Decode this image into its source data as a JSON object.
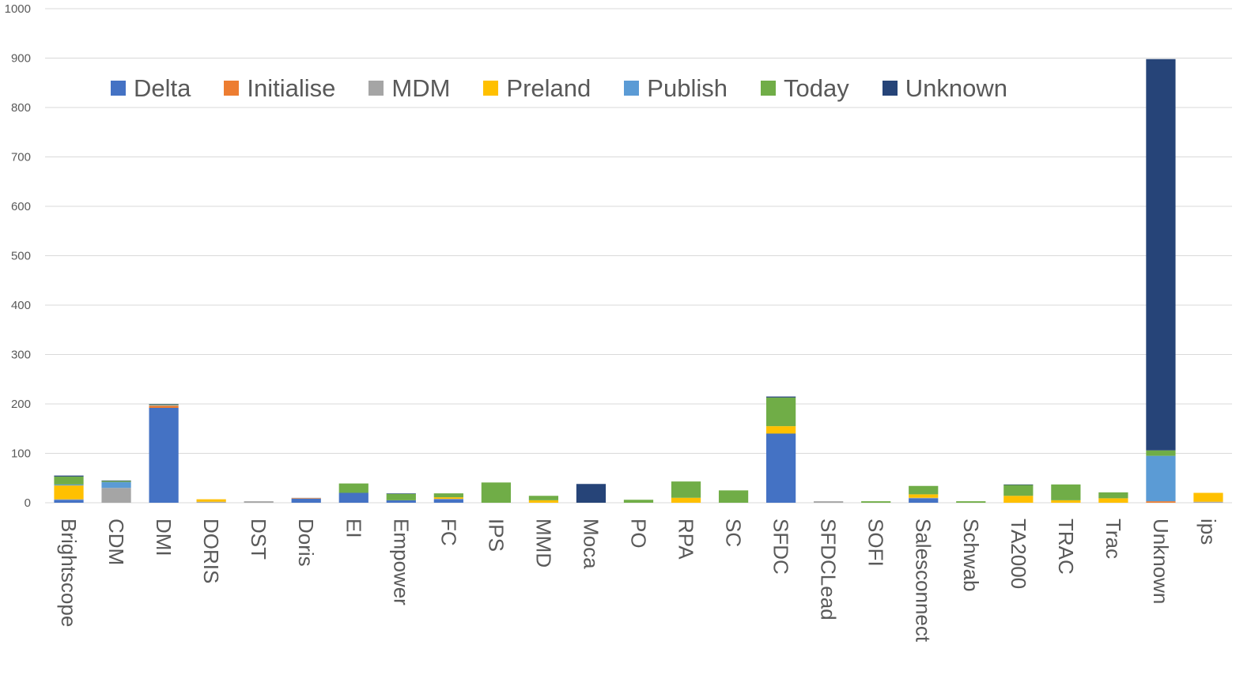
{
  "chart_data": {
    "type": "bar",
    "stacked": true,
    "title": "",
    "xlabel": "",
    "ylabel": "",
    "ylim": [
      0,
      1000
    ],
    "yticks": [
      0,
      100,
      200,
      300,
      400,
      500,
      600,
      700,
      800,
      900,
      1000
    ],
    "grid": true,
    "legend_position": "top-left",
    "categories": [
      "Brightscope",
      "CDM",
      "DMI",
      "DORIS",
      "DST",
      "Doris",
      "EI",
      "Empower",
      "FC",
      "IPS",
      "MMD",
      "Moca",
      "PO",
      "RPA",
      "SC",
      "SFDC",
      "SFDCLead",
      "SOFI",
      "Salesconnect",
      "Schwab",
      "TA2000",
      "TRAC",
      "Trac",
      "Unknown",
      "ips"
    ],
    "series": [
      {
        "name": "Delta",
        "color": "#4472C4",
        "values": [
          6,
          0,
          192,
          0,
          0,
          8,
          20,
          5,
          7,
          0,
          0,
          0,
          0,
          0,
          0,
          140,
          0,
          0,
          9,
          0,
          0,
          0,
          0,
          0,
          0
        ]
      },
      {
        "name": "Initialise",
        "color": "#ED7D31",
        "values": [
          0,
          0,
          4,
          0,
          0,
          1,
          0,
          0,
          0,
          0,
          0,
          0,
          0,
          0,
          0,
          0,
          0,
          0,
          0,
          0,
          0,
          0,
          0,
          3,
          0
        ]
      },
      {
        "name": "MDM",
        "color": "#A5A5A5",
        "values": [
          1,
          30,
          2,
          2,
          3,
          1,
          0,
          0,
          1,
          0,
          0,
          0,
          0,
          0,
          0,
          0,
          3,
          0,
          1,
          0,
          0,
          0,
          0,
          0,
          2
        ]
      },
      {
        "name": "Preland",
        "color": "#FFC000",
        "values": [
          28,
          0,
          0,
          5,
          0,
          0,
          0,
          0,
          3,
          0,
          5,
          0,
          0,
          10,
          0,
          15,
          0,
          0,
          7,
          0,
          14,
          5,
          9,
          0,
          18
        ]
      },
      {
        "name": "Publish",
        "color": "#5B9BD5",
        "values": [
          2,
          12,
          0,
          0,
          0,
          0,
          0,
          0,
          0,
          0,
          0,
          0,
          0,
          0,
          0,
          0,
          0,
          0,
          0,
          0,
          0,
          0,
          0,
          92,
          0
        ]
      },
      {
        "name": "Today",
        "color": "#70AD47",
        "values": [
          16,
          2,
          1,
          0,
          0,
          0,
          19,
          13,
          8,
          41,
          9,
          0,
          6,
          33,
          25,
          58,
          0,
          3,
          17,
          3,
          22,
          32,
          12,
          11,
          0
        ]
      },
      {
        "name": "Unknown",
        "color": "#264478",
        "values": [
          2,
          1,
          1,
          0,
          0,
          0,
          0,
          1,
          0,
          0,
          0,
          38,
          0,
          0,
          0,
          2,
          0,
          0,
          0,
          0,
          1,
          0,
          0,
          792,
          0
        ]
      }
    ]
  }
}
